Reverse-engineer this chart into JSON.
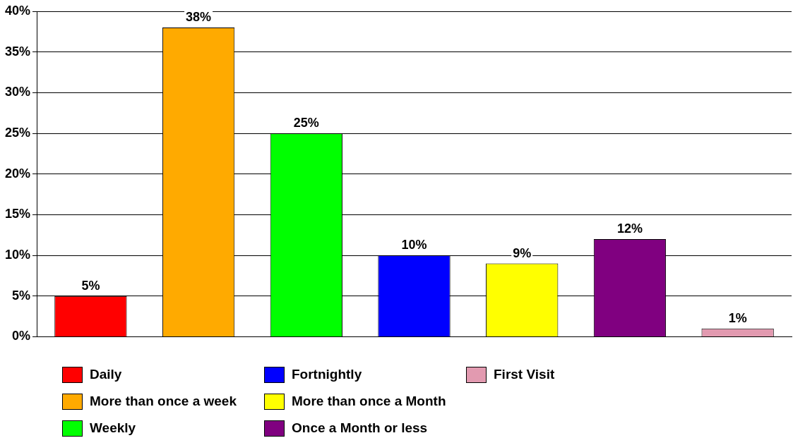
{
  "chart_data": {
    "type": "bar",
    "categories": [
      null,
      null,
      null,
      null,
      null,
      null,
      null
    ],
    "series": [
      {
        "name": "Daily",
        "color": "#ff0000",
        "values": [
          5,
          null,
          null,
          null,
          null,
          null,
          null
        ],
        "value_labels": [
          "5%",
          null,
          null,
          null,
          null,
          null,
          null
        ]
      },
      {
        "name": "More than once a week",
        "color": "#ffaa00",
        "values": [
          null,
          38,
          null,
          null,
          null,
          null,
          null
        ],
        "value_labels": [
          null,
          "38%",
          null,
          null,
          null,
          null,
          null
        ]
      },
      {
        "name": "Weekly",
        "color": "#00ff00",
        "values": [
          null,
          null,
          25,
          null,
          null,
          null,
          null
        ],
        "value_labels": [
          null,
          null,
          "25%",
          null,
          null,
          null,
          null
        ]
      },
      {
        "name": "Fortnightly",
        "color": "#0000ff",
        "values": [
          null,
          null,
          null,
          10,
          null,
          null,
          null
        ],
        "value_labels": [
          null,
          null,
          null,
          "10%",
          null,
          null,
          null
        ]
      },
      {
        "name": "More than once a Month",
        "color": "#ffff00",
        "values": [
          null,
          null,
          null,
          null,
          9,
          null,
          null
        ],
        "value_labels": [
          null,
          null,
          null,
          null,
          "9%",
          null,
          null
        ]
      },
      {
        "name": "Once a Month or less",
        "color": "#800080",
        "values": [
          null,
          null,
          null,
          null,
          null,
          12,
          null
        ],
        "value_labels": [
          null,
          null,
          null,
          null,
          null,
          "12%",
          null
        ]
      },
      {
        "name": "First Visit",
        "color": "#e29ab0",
        "values": [
          null,
          null,
          null,
          null,
          null,
          null,
          1
        ],
        "value_labels": [
          null,
          null,
          null,
          null,
          null,
          null,
          "1%"
        ]
      }
    ],
    "ylim": [
      0,
      40
    ],
    "yticks": [
      {
        "value": 0,
        "label": "0%"
      },
      {
        "value": 5,
        "label": "5%"
      },
      {
        "value": 10,
        "label": "10%"
      },
      {
        "value": 15,
        "label": "15%"
      },
      {
        "value": 20,
        "label": "20%"
      },
      {
        "value": 25,
        "label": "25%"
      },
      {
        "value": 30,
        "label": "30%"
      },
      {
        "value": 35,
        "label": "35%"
      },
      {
        "value": 40,
        "label": "40%"
      }
    ],
    "grid": "y",
    "legend": "bottom"
  }
}
